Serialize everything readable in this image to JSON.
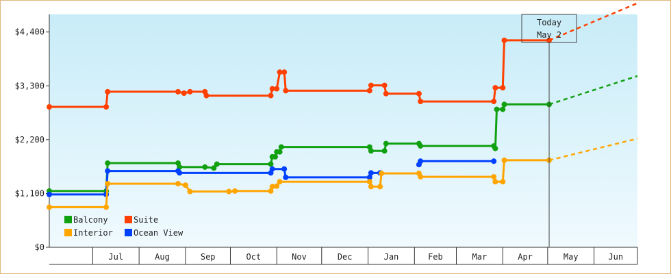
{
  "chart_data": {
    "type": "line",
    "y_ticks": [
      {
        "value": 0,
        "label": "$0"
      },
      {
        "value": 1100,
        "label": "$1,100"
      },
      {
        "value": 2200,
        "label": "$2,200"
      },
      {
        "value": 3300,
        "label": "$3,300"
      },
      {
        "value": 4400,
        "label": "$4,400"
      }
    ],
    "ylim": [
      0,
      4760
    ],
    "months": [
      "Jul",
      "Aug",
      "Sep",
      "Oct",
      "Nov",
      "Dec",
      "Jan",
      "Feb",
      "Mar",
      "Apr",
      "May",
      "Jun"
    ],
    "x_start": "2024-06-02",
    "x_end": "2025-06-30",
    "today": {
      "date": "2025-05-02",
      "line1": "Today",
      "line2": "May 2"
    },
    "background": {
      "top": "#c8ecf8",
      "bottom": "#f0fafe"
    },
    "series": [
      {
        "name": "Suite",
        "color": "#ff4000",
        "points": [
          [
            "2024-06-02",
            2870
          ],
          [
            "2024-07-10",
            2870
          ],
          [
            "2024-07-11",
            3180
          ],
          [
            "2024-08-27",
            3180
          ],
          [
            "2024-08-31",
            3150
          ],
          [
            "2024-09-04",
            3180
          ],
          [
            "2024-09-14",
            3180
          ],
          [
            "2024-09-15",
            3100
          ],
          [
            "2024-10-28",
            3100
          ],
          [
            "2024-10-29",
            3240
          ],
          [
            "2024-11-01",
            3240
          ],
          [
            "2024-11-03",
            3580
          ],
          [
            "2024-11-06",
            3580
          ],
          [
            "2024-11-07",
            3200
          ],
          [
            "2025-01-02",
            3200
          ],
          [
            "2025-01-03",
            3310
          ],
          [
            "2025-01-12",
            3310
          ],
          [
            "2025-01-13",
            3140
          ],
          [
            "2025-02-04",
            3140
          ],
          [
            "2025-02-05",
            2980
          ],
          [
            "2025-03-26",
            2980
          ],
          [
            "2025-03-27",
            3260
          ],
          [
            "2025-04-01",
            3260
          ],
          [
            "2025-04-02",
            4230
          ],
          [
            "2025-05-02",
            4230
          ]
        ],
        "projection": [
          [
            "2025-05-02",
            4230
          ],
          [
            "2025-06-30",
            4990
          ]
        ]
      },
      {
        "name": "Balcony",
        "color": "#10a010",
        "points": [
          [
            "2024-06-02",
            1150
          ],
          [
            "2024-07-10",
            1150
          ],
          [
            "2024-07-11",
            1720
          ],
          [
            "2024-08-27",
            1720
          ],
          [
            "2024-08-28",
            1640
          ],
          [
            "2024-09-14",
            1640
          ],
          [
            "2024-09-20",
            1620
          ],
          [
            "2024-09-22",
            1700
          ],
          [
            "2024-10-28",
            1700
          ],
          [
            "2024-10-29",
            1850
          ],
          [
            "2024-10-31",
            1850
          ],
          [
            "2024-11-01",
            1950
          ],
          [
            "2024-11-03",
            1950
          ],
          [
            "2024-11-04",
            2050
          ],
          [
            "2025-01-02",
            2050
          ],
          [
            "2025-01-03",
            1970
          ],
          [
            "2025-01-12",
            1970
          ],
          [
            "2025-01-13",
            2120
          ],
          [
            "2025-02-04",
            2120
          ],
          [
            "2025-02-05",
            2070
          ],
          [
            "2025-03-26",
            2070
          ],
          [
            "2025-03-27",
            2020
          ],
          [
            "2025-03-28",
            2820
          ],
          [
            "2025-04-01",
            2820
          ],
          [
            "2025-04-02",
            2920
          ],
          [
            "2025-05-02",
            2920
          ]
        ],
        "projection": [
          [
            "2025-05-02",
            2920
          ],
          [
            "2025-06-30",
            3500
          ]
        ]
      },
      {
        "name": "Ocean View",
        "color": "#0040ff",
        "points": [
          [
            "2024-06-02",
            1080
          ],
          [
            "2024-07-10",
            1080
          ],
          [
            "2024-07-11",
            1560
          ],
          [
            "2024-08-27",
            1560
          ],
          [
            "2024-08-28",
            1520
          ],
          [
            "2024-10-28",
            1520
          ],
          [
            "2024-10-29",
            1600
          ],
          [
            "2024-11-06",
            1600
          ],
          [
            "2024-11-07",
            1430
          ],
          [
            "2025-01-02",
            1430
          ],
          [
            "2025-01-03",
            1520
          ],
          [
            "2025-01-09",
            1520
          ]
        ],
        "segments": [
          [
            [
              "2025-02-04",
              1690
            ],
            [
              "2025-02-05",
              1760
            ],
            [
              "2025-03-26",
              1760
            ]
          ]
        ]
      },
      {
        "name": "Interior",
        "color": "#ffa500",
        "points": [
          [
            "2024-06-02",
            820
          ],
          [
            "2024-07-10",
            820
          ],
          [
            "2024-07-11",
            1300
          ],
          [
            "2024-08-27",
            1300
          ],
          [
            "2024-09-01",
            1270
          ],
          [
            "2024-09-04",
            1140
          ],
          [
            "2024-09-30",
            1140
          ],
          [
            "2024-10-04",
            1150
          ],
          [
            "2024-10-28",
            1150
          ],
          [
            "2024-10-29",
            1240
          ],
          [
            "2024-11-01",
            1250
          ],
          [
            "2024-11-03",
            1340
          ],
          [
            "2025-01-02",
            1340
          ],
          [
            "2025-01-03",
            1240
          ],
          [
            "2025-01-09",
            1240
          ],
          [
            "2025-01-10",
            1510
          ],
          [
            "2025-02-04",
            1510
          ],
          [
            "2025-02-05",
            1440
          ],
          [
            "2025-03-26",
            1440
          ],
          [
            "2025-03-27",
            1340
          ],
          [
            "2025-04-01",
            1340
          ],
          [
            "2025-04-02",
            1780
          ],
          [
            "2025-05-02",
            1780
          ]
        ],
        "projection": [
          [
            "2025-05-02",
            1780
          ],
          [
            "2025-06-30",
            2220
          ]
        ]
      }
    ],
    "legend": [
      {
        "name": "Balcony",
        "color": "#10a010"
      },
      {
        "name": "Suite",
        "color": "#ff4000"
      },
      {
        "name": "Interior",
        "color": "#ffa500"
      },
      {
        "name": "Ocean View",
        "color": "#0040ff"
      }
    ]
  }
}
